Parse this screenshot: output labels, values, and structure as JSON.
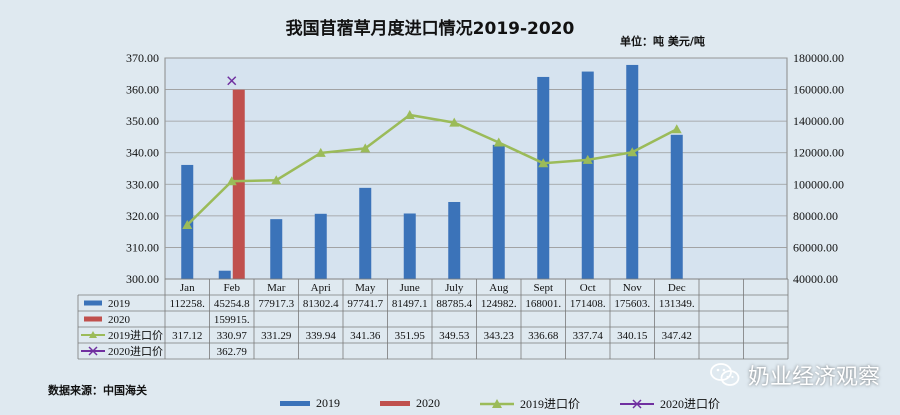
{
  "chart_data": {
    "type": "bar+line",
    "title": "我国苜蓿草月度进口情况2019-2020",
    "unit_label": "单位：吨  美元/吨",
    "source_label": "数据来源：中国海关",
    "categories": [
      "Jan",
      "Feb",
      "Mar",
      "Apri",
      "May",
      "June",
      "July",
      "Aug",
      "Sept",
      "Oct",
      "Nov",
      "Dec"
    ],
    "left_axis": {
      "min": 300,
      "max": 370,
      "step": 10,
      "ticks": [
        "300.00",
        "310.00",
        "320.00",
        "330.00",
        "340.00",
        "350.00",
        "360.00",
        "370.00"
      ]
    },
    "right_axis": {
      "min": 40000,
      "max": 180000,
      "step": 20000,
      "ticks": [
        "40000.00",
        "60000.00",
        "80000.00",
        "100000.00",
        "120000.00",
        "140000.00",
        "160000.00",
        "180000.00"
      ]
    },
    "series": [
      {
        "name": "2019",
        "kind": "bar",
        "axis": "right",
        "color": "#3b73b9",
        "values": [
          112258,
          45254.8,
          77917.3,
          81302.4,
          97741.7,
          81497.1,
          88785.4,
          124982,
          168001,
          171408,
          175603,
          131349
        ],
        "labels": [
          "112258.",
          "45254.8",
          "77917.3",
          "81302.4",
          "97741.7",
          "81497.1",
          "88785.4",
          "124982.",
          "168001.",
          "171408.",
          "175603.",
          "131349."
        ]
      },
      {
        "name": "2020",
        "kind": "bar",
        "axis": "right",
        "color": "#c0504d",
        "values": [
          null,
          159915,
          null,
          null,
          null,
          null,
          null,
          null,
          null,
          null,
          null,
          null
        ],
        "labels": [
          "",
          "159915.",
          "",
          "",
          "",
          "",
          "",
          "",
          "",
          "",
          "",
          ""
        ]
      },
      {
        "name": "2019进口价",
        "kind": "line",
        "axis": "left",
        "color": "#9bbb59",
        "values": [
          317.12,
          330.97,
          331.29,
          339.94,
          341.36,
          351.95,
          349.53,
          343.23,
          336.68,
          337.74,
          340.15,
          347.42
        ],
        "labels": [
          "317.12",
          "330.97",
          "331.29",
          "339.94",
          "341.36",
          "351.95",
          "349.53",
          "343.23",
          "336.68",
          "337.74",
          "340.15",
          "347.42"
        ]
      },
      {
        "name": "2020进口价",
        "kind": "line",
        "axis": "left",
        "color": "#7030a0",
        "values": [
          null,
          362.79,
          null,
          null,
          null,
          null,
          null,
          null,
          null,
          null,
          null,
          null
        ],
        "labels": [
          "",
          "362.79",
          "",
          "",
          "",
          "",
          "",
          "",
          "",
          "",
          "",
          ""
        ]
      }
    ]
  },
  "watermark": {
    "text": "奶业经济观察"
  }
}
